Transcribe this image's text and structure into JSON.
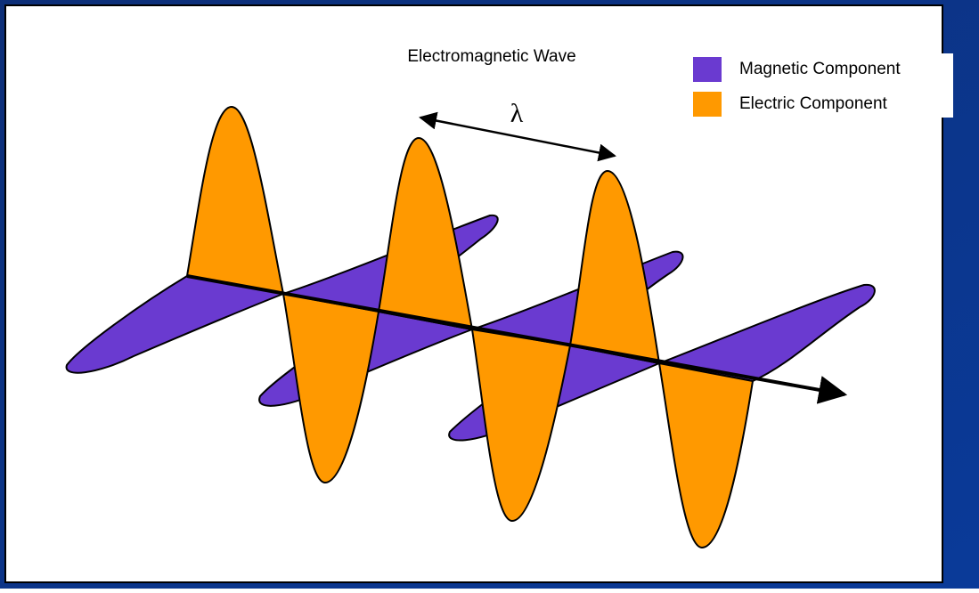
{
  "diagram": {
    "title": "Electromagnetic Wave",
    "wavelength_label": "λ",
    "legend": [
      {
        "label": "Magnetic Component",
        "color": "#6a3ad0"
      },
      {
        "label": "Electric Component",
        "color": "#ff9900"
      }
    ]
  }
}
